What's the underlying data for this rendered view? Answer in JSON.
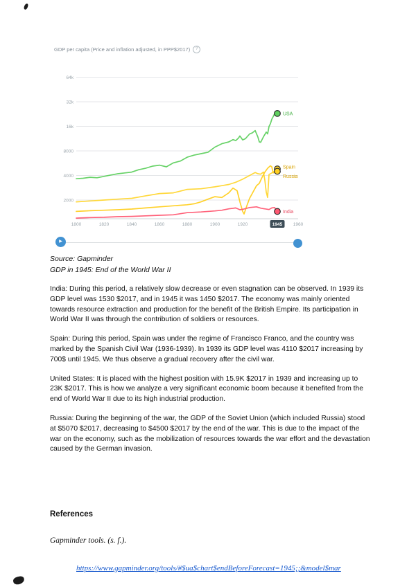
{
  "doc": {
    "source_line": "Source: Gapminder",
    "caption_line": "GDP in 1945: End of the World War II",
    "paragraphs": [
      {
        "id": "india",
        "text": "India: During this period, a relatively slow decrease or even stagnation can be observed. In 1939 its GDP level was 1530 $2017, and in 1945 it was 1450 $2017. The economy was mainly oriented towards resource extraction and production for the benefit of the British Empire. Its participation in World War II was through the contribution of soldiers or resources."
      },
      {
        "id": "spain",
        "text": "Spain: During this period, Spain was under the regime of Francisco Franco, and the country was marked by the Spanish Civil War (1936-1939). In 1939 its GDP level was 4110 $2017 increasing by 700$ until 1945. We thus observe a gradual recovery after the civil war."
      },
      {
        "id": "united-states",
        "text": "United States: It is placed with the highest position with 15.9K $2017 in 1939 and increasing up to 23K $2017. This is how we analyze a very significant economic boom because it benefited from the end of World War II due to its high industrial production."
      },
      {
        "id": "russia",
        "text": "Russia: During the beginning of the war, the GDP of the Soviet Union (which included Russia) stood at $5070 $2017, decreasing to $4500 $2017 by the end of the war. This is due to the impact of the war on the economy, such as the mobilization of resources towards the war effort and the devastation caused by the German invasion."
      }
    ],
    "references_heading": "References",
    "reference_citation": "Gapminder tools. (s. f.).",
    "reference_link": "https://www.gapminder.org/tools/#$ua$chart$endBeforeForecast=1945;;&model$mar"
  },
  "chart_data": {
    "type": "line",
    "title": "GDP per capita (Price and inflation adjusted, in PPP$2017)",
    "help_icon_glyph": "?",
    "legend_position": "end-of-line",
    "grid": true,
    "x_axis": {
      "min": 1800,
      "max": 1960,
      "ticks": [
        1800,
        1820,
        1840,
        1860,
        1880,
        1900,
        1920,
        1960
      ],
      "highlighted_tick": 1945,
      "highlight_box_color": "#3d4d57",
      "highlight_text_color": "#ffffff"
    },
    "y_axis": {
      "scale": "log",
      "ticks": [
        2000,
        4000,
        8000,
        16000,
        32000,
        64000
      ],
      "tick_labels": [
        "2000",
        "4000",
        "8000",
        "16k",
        "32k",
        "64k"
      ]
    },
    "series": [
      {
        "name": "USA",
        "color": "#5fd05f",
        "label_color": "#3fae3f",
        "label_dy": 0,
        "points": [
          [
            1800,
            3650
          ],
          [
            1805,
            3700
          ],
          [
            1810,
            3800
          ],
          [
            1815,
            3750
          ],
          [
            1820,
            3900
          ],
          [
            1825,
            4050
          ],
          [
            1830,
            4200
          ],
          [
            1835,
            4300
          ],
          [
            1840,
            4400
          ],
          [
            1845,
            4700
          ],
          [
            1850,
            4900
          ],
          [
            1855,
            5200
          ],
          [
            1860,
            5350
          ],
          [
            1865,
            5100
          ],
          [
            1870,
            5700
          ],
          [
            1875,
            6000
          ],
          [
            1880,
            6700
          ],
          [
            1885,
            7100
          ],
          [
            1890,
            7400
          ],
          [
            1895,
            7700
          ],
          [
            1900,
            8900
          ],
          [
            1905,
            9800
          ],
          [
            1910,
            10300
          ],
          [
            1913,
            11000
          ],
          [
            1915,
            10700
          ],
          [
            1917,
            11500
          ],
          [
            1918,
            12200
          ],
          [
            1920,
            10900
          ],
          [
            1922,
            11300
          ],
          [
            1925,
            12900
          ],
          [
            1927,
            13300
          ],
          [
            1929,
            14200
          ],
          [
            1931,
            11800
          ],
          [
            1932,
            10300
          ],
          [
            1933,
            10200
          ],
          [
            1935,
            11900
          ],
          [
            1937,
            13600
          ],
          [
            1938,
            12900
          ],
          [
            1939,
            15900
          ],
          [
            1940,
            17200
          ],
          [
            1941,
            19500
          ],
          [
            1942,
            21000
          ],
          [
            1943,
            22800
          ],
          [
            1944,
            23800
          ],
          [
            1945,
            23000
          ]
        ]
      },
      {
        "name": "Spain",
        "color": "#ffd630",
        "label_color": "#d9a300",
        "label_dy": -3,
        "points": [
          [
            1800,
            1900
          ],
          [
            1810,
            1950
          ],
          [
            1820,
            2000
          ],
          [
            1830,
            2050
          ],
          [
            1840,
            2100
          ],
          [
            1850,
            2250
          ],
          [
            1860,
            2400
          ],
          [
            1870,
            2450
          ],
          [
            1880,
            2700
          ],
          [
            1890,
            2750
          ],
          [
            1900,
            2900
          ],
          [
            1905,
            3000
          ],
          [
            1910,
            3100
          ],
          [
            1915,
            3300
          ],
          [
            1920,
            3600
          ],
          [
            1925,
            4000
          ],
          [
            1929,
            4350
          ],
          [
            1931,
            4200
          ],
          [
            1933,
            4150
          ],
          [
            1935,
            4400
          ],
          [
            1936,
            3500
          ],
          [
            1937,
            2500
          ],
          [
            1938,
            2150
          ],
          [
            1939,
            4110
          ],
          [
            1941,
            4300
          ],
          [
            1943,
            4550
          ],
          [
            1945,
            4810
          ]
        ]
      },
      {
        "name": "Russia",
        "color": "#ffcf20",
        "label_color": "#d9a300",
        "label_dy": 7,
        "points": [
          [
            1800,
            1450
          ],
          [
            1810,
            1480
          ],
          [
            1820,
            1500
          ],
          [
            1830,
            1520
          ],
          [
            1840,
            1550
          ],
          [
            1850,
            1600
          ],
          [
            1860,
            1650
          ],
          [
            1870,
            1700
          ],
          [
            1880,
            1750
          ],
          [
            1885,
            1800
          ],
          [
            1890,
            1900
          ],
          [
            1895,
            2050
          ],
          [
            1900,
            2200
          ],
          [
            1905,
            2150
          ],
          [
            1910,
            2450
          ],
          [
            1913,
            2800
          ],
          [
            1916,
            2600
          ],
          [
            1918,
            1900
          ],
          [
            1920,
            1450
          ],
          [
            1921,
            1350
          ],
          [
            1923,
            1700
          ],
          [
            1925,
            2100
          ],
          [
            1928,
            2600
          ],
          [
            1930,
            3000
          ],
          [
            1932,
            3200
          ],
          [
            1934,
            3800
          ],
          [
            1936,
            4400
          ],
          [
            1938,
            4900
          ],
          [
            1939,
            5070
          ],
          [
            1940,
            5250
          ],
          [
            1941,
            5100
          ],
          [
            1942,
            4300
          ],
          [
            1943,
            4400
          ],
          [
            1944,
            4700
          ],
          [
            1945,
            4500
          ]
        ]
      },
      {
        "name": "India",
        "color": "#ff5872",
        "label_color": "#e8485f",
        "label_dy": 0,
        "points": [
          [
            1800,
            1200
          ],
          [
            1810,
            1220
          ],
          [
            1820,
            1230
          ],
          [
            1830,
            1250
          ],
          [
            1840,
            1260
          ],
          [
            1850,
            1280
          ],
          [
            1860,
            1300
          ],
          [
            1870,
            1320
          ],
          [
            1880,
            1400
          ],
          [
            1890,
            1430
          ],
          [
            1900,
            1470
          ],
          [
            1905,
            1500
          ],
          [
            1910,
            1560
          ],
          [
            1915,
            1600
          ],
          [
            1918,
            1520
          ],
          [
            1920,
            1540
          ],
          [
            1925,
            1620
          ],
          [
            1930,
            1650
          ],
          [
            1933,
            1590
          ],
          [
            1935,
            1570
          ],
          [
            1939,
            1530
          ],
          [
            1941,
            1600
          ],
          [
            1943,
            1620
          ],
          [
            1945,
            1450
          ]
        ]
      }
    ],
    "colors": {
      "gridline": "#e4e6e8",
      "axis_line": "#cfd3d6",
      "tick_text": "#9aa4ab",
      "marker_stroke": "#2b2b2b",
      "slider_blue": "#4292d2",
      "link_blue": "#1155cc"
    }
  }
}
